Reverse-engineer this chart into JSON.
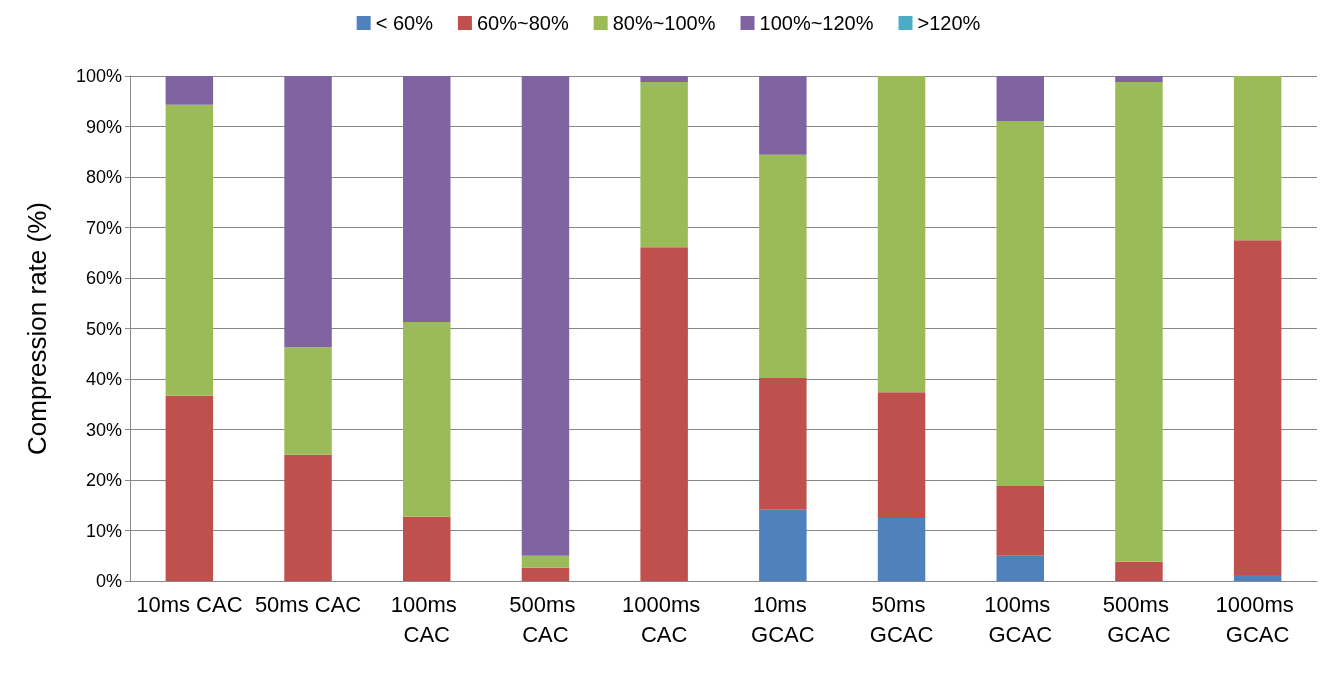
{
  "chart_data": {
    "type": "bar",
    "stacked": true,
    "ylabel": "Compression rate (%)",
    "categories": [
      "10ms CAC",
      "50ms CAC",
      "100ms CAC",
      "500ms CAC",
      "1000ms CAC",
      "10ms GCAC",
      "50ms GCAC",
      "100ms GCAC",
      "500ms GCAC",
      "1000ms GCAC"
    ],
    "series": [
      {
        "name": "< 60%",
        "color": "#4f81bd",
        "values": [
          0,
          0,
          0,
          0,
          0,
          14.1,
          12.5,
          5.0,
          0,
          1.2
        ]
      },
      {
        "name": "60%~80%",
        "color": "#c0504d",
        "values": [
          36.7,
          25.0,
          12.7,
          2.6,
          66.1,
          26.1,
          24.9,
          13.8,
          3.8,
          66.3
        ]
      },
      {
        "name": "80%~100%",
        "color": "#9bbb59",
        "values": [
          57.6,
          21.3,
          38.6,
          2.4,
          32.7,
          44.2,
          62.6,
          72.3,
          95.0,
          32.5
        ]
      },
      {
        "name": "100%~120%",
        "color": "#8064a2",
        "values": [
          5.7,
          53.7,
          48.7,
          95.0,
          1.2,
          15.6,
          0,
          8.9,
          1.2,
          0
        ]
      },
      {
        "name": ">120%",
        "color": "#4bacc6",
        "values": [
          0,
          0,
          0,
          0,
          0,
          0,
          0,
          0,
          0,
          0
        ]
      }
    ],
    "ylim": [
      0,
      100
    ],
    "yticks": [
      {
        "value": 0,
        "label": "0%"
      },
      {
        "value": 10,
        "label": "10%"
      },
      {
        "value": 20,
        "label": "20%"
      },
      {
        "value": 30,
        "label": "30%"
      },
      {
        "value": 40,
        "label": "40%"
      },
      {
        "value": 50,
        "label": "50%"
      },
      {
        "value": 60,
        "label": "60%"
      },
      {
        "value": 70,
        "label": "70%"
      },
      {
        "value": 80,
        "label": "80%"
      },
      {
        "value": 90,
        "label": "90%"
      },
      {
        "value": 100,
        "label": "100%"
      }
    ],
    "grid": "y",
    "legend": "top"
  }
}
